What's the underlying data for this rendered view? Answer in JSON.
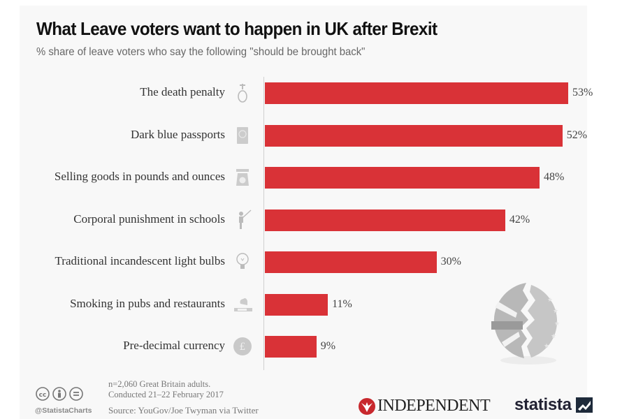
{
  "chart_data": {
    "type": "bar",
    "orientation": "horizontal",
    "title": "What Leave voters want to happen in UK after Brexit",
    "subtitle": "% share of leave voters who say the following \"should be brought back\"",
    "categories": [
      "The death penalty",
      "Dark blue passports",
      "Selling goods in pounds and ounces",
      "Corporal punishment in schools",
      "Traditional incandescent light bulbs",
      "Smoking in pubs and restaurants",
      "Pre-decimal currency"
    ],
    "values": [
      53,
      52,
      48,
      42,
      30,
      11,
      9
    ],
    "value_labels": [
      "53%",
      "52%",
      "48%",
      "42%",
      "30%",
      "11%",
      "9%"
    ],
    "icons": [
      "noose-icon",
      "passport-icon",
      "scale-icon",
      "teacher-cane-icon",
      "light-bulb-icon",
      "cigarette-icon",
      "pound-coin-icon"
    ],
    "xlabel": "",
    "ylabel": "",
    "xlim": [
      0,
      53
    ],
    "grid": false,
    "bar_color": "#d93237"
  },
  "footer": {
    "sample_note": "n=2,060 Great Britain adults.",
    "date_note": "Conducted 21–22 February 2017",
    "source": "Source: YouGov/Joe Twyman via Twitter",
    "handle": "@StatistaCharts",
    "license_icons": [
      "cc",
      "i",
      "="
    ]
  },
  "brands": {
    "independent": "INDEPENDENT",
    "statista": "statista",
    "independent_color": "#c8282d"
  }
}
